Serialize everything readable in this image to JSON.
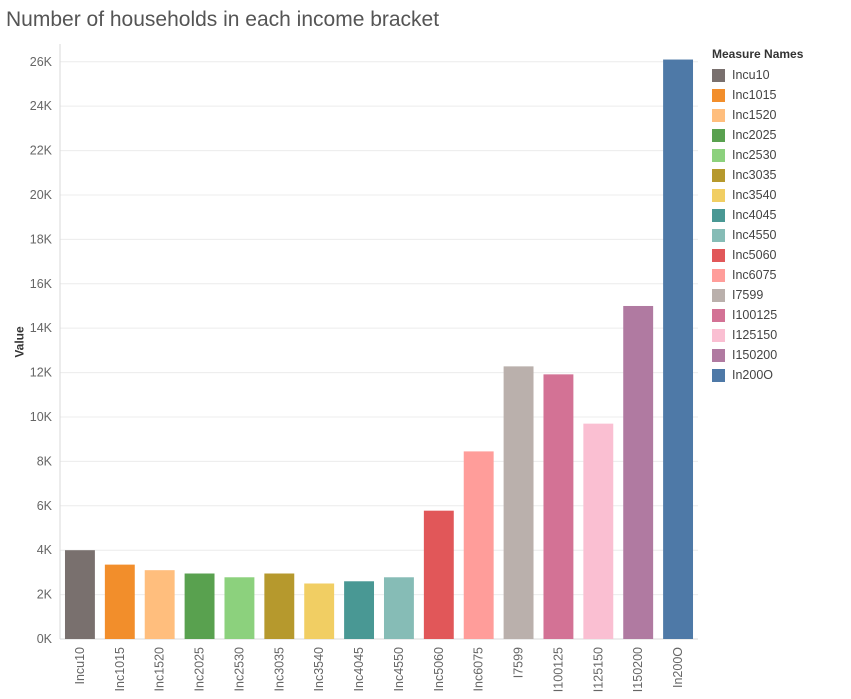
{
  "chart_data": {
    "type": "bar",
    "title": "Number of households in each income bracket",
    "ylabel": "Value",
    "xlabel": "",
    "ylim": [
      0,
      26800
    ],
    "yticks": [
      0,
      2000,
      4000,
      6000,
      8000,
      10000,
      12000,
      14000,
      16000,
      18000,
      20000,
      22000,
      24000,
      26000
    ],
    "ytick_labels": [
      "0K",
      "2K",
      "4K",
      "6K",
      "8K",
      "10K",
      "12K",
      "14K",
      "16K",
      "18K",
      "20K",
      "22K",
      "24K",
      "26K"
    ],
    "grid": true,
    "legend_title": "Measure Names",
    "legend_position": "right",
    "categories": [
      "Incu10",
      "Inc1015",
      "Inc1520",
      "Inc2025",
      "Inc2530",
      "Inc3035",
      "Inc3540",
      "Inc4045",
      "Inc4550",
      "Inc5060",
      "Inc6075",
      "I7599",
      "I100125",
      "I125150",
      "I150200",
      "In200O"
    ],
    "values": [
      4000,
      3350,
      3100,
      2950,
      2780,
      2950,
      2500,
      2600,
      2780,
      5780,
      8450,
      12280,
      11920,
      9700,
      15000,
      26100
    ],
    "colors": [
      "#79706e",
      "#f28e2b",
      "#ffbe7d",
      "#59a14f",
      "#8cd17d",
      "#b6992d",
      "#f1ce63",
      "#499894",
      "#86bcb6",
      "#e15759",
      "#ff9d9a",
      "#bab0ac",
      "#d37295",
      "#fabfd2",
      "#b07aa1",
      "#4e79a7"
    ]
  }
}
